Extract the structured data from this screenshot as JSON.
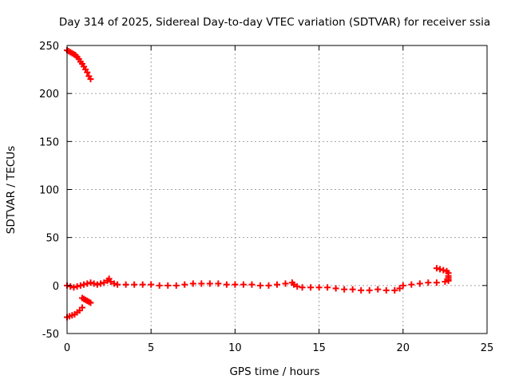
{
  "chart_data": {
    "type": "scatter",
    "title": "Day 314 of 2025, Sidereal Day-to-day VTEC variation (SDTVAR) for receiver ssia",
    "xlabel": "GPS time / hours",
    "ylabel": "SDTVAR / TECUs",
    "xlim": [
      0,
      25
    ],
    "ylim": [
      -50,
      250
    ],
    "xticks": [
      0,
      5,
      10,
      15,
      20,
      25
    ],
    "yticks": [
      -50,
      0,
      50,
      100,
      150,
      200,
      250
    ],
    "grid": true,
    "marker_color": "#ff0000",
    "series": [
      {
        "points": [
          [
            0.0,
            245
          ],
          [
            0.1,
            244
          ],
          [
            0.2,
            243
          ],
          [
            0.3,
            242
          ],
          [
            0.4,
            241
          ],
          [
            0.5,
            240
          ],
          [
            0.6,
            238
          ],
          [
            0.7,
            236
          ],
          [
            0.8,
            233
          ],
          [
            0.9,
            231
          ],
          [
            1.0,
            228
          ],
          [
            1.1,
            225
          ],
          [
            1.2,
            222
          ],
          [
            1.3,
            218
          ],
          [
            1.4,
            215
          ],
          [
            0.0,
            -33
          ],
          [
            0.15,
            -32
          ],
          [
            0.3,
            -31
          ],
          [
            0.45,
            -30
          ],
          [
            0.6,
            -28
          ],
          [
            0.75,
            -26
          ],
          [
            0.9,
            -23
          ],
          [
            0.9,
            -13
          ],
          [
            1.0,
            -14
          ],
          [
            1.1,
            -15
          ],
          [
            1.2,
            -16
          ],
          [
            1.3,
            -17
          ],
          [
            1.4,
            -18
          ],
          [
            0.0,
            0
          ],
          [
            0.2,
            -1
          ],
          [
            0.4,
            -2
          ],
          [
            0.6,
            -1
          ],
          [
            0.8,
            0
          ],
          [
            1.0,
            1
          ],
          [
            1.2,
            2
          ],
          [
            1.4,
            3
          ],
          [
            1.6,
            2
          ],
          [
            1.8,
            1
          ],
          [
            2.0,
            2
          ],
          [
            2.2,
            3
          ],
          [
            2.4,
            5
          ],
          [
            2.5,
            7
          ],
          [
            2.6,
            4
          ],
          [
            2.8,
            2
          ],
          [
            3.0,
            1
          ],
          [
            3.5,
            1
          ],
          [
            4.0,
            1
          ],
          [
            4.5,
            1
          ],
          [
            5.0,
            1
          ],
          [
            5.5,
            0
          ],
          [
            6.0,
            0
          ],
          [
            6.5,
            0
          ],
          [
            7.0,
            1
          ],
          [
            7.5,
            2
          ],
          [
            8.0,
            2
          ],
          [
            8.5,
            2
          ],
          [
            9.0,
            2
          ],
          [
            9.5,
            1
          ],
          [
            10.0,
            1
          ],
          [
            10.5,
            1
          ],
          [
            11.0,
            1
          ],
          [
            11.5,
            0
          ],
          [
            12.0,
            0
          ],
          [
            12.5,
            1
          ],
          [
            13.0,
            2
          ],
          [
            13.4,
            3
          ],
          [
            13.5,
            1
          ],
          [
            13.7,
            -1
          ],
          [
            14.0,
            -2
          ],
          [
            14.5,
            -2
          ],
          [
            15.0,
            -2
          ],
          [
            15.5,
            -2
          ],
          [
            16.0,
            -3
          ],
          [
            16.5,
            -4
          ],
          [
            17.0,
            -4
          ],
          [
            17.5,
            -5
          ],
          [
            18.0,
            -5
          ],
          [
            18.5,
            -4
          ],
          [
            19.0,
            -5
          ],
          [
            19.5,
            -5
          ],
          [
            19.8,
            -3
          ],
          [
            20.0,
            0
          ],
          [
            20.5,
            1
          ],
          [
            21.0,
            2
          ],
          [
            21.5,
            3
          ],
          [
            22.0,
            3
          ],
          [
            22.5,
            4
          ],
          [
            22.7,
            5
          ],
          [
            22.0,
            18
          ],
          [
            22.2,
            17
          ],
          [
            22.4,
            16
          ],
          [
            22.6,
            15
          ],
          [
            22.7,
            13
          ],
          [
            22.7,
            10
          ],
          [
            22.7,
            8
          ],
          [
            22.7,
            6
          ]
        ]
      }
    ]
  }
}
